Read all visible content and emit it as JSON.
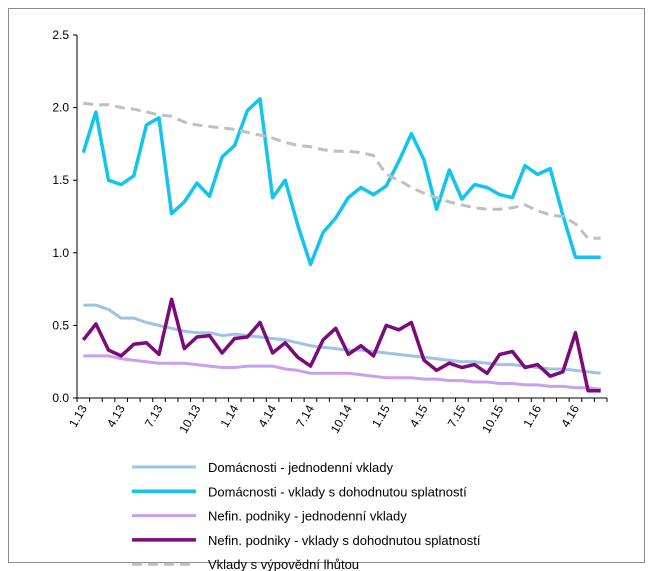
{
  "chart_data": {
    "type": "line",
    "title": "",
    "xlabel": "",
    "ylabel": "",
    "ylim": [
      0,
      2.5
    ],
    "yticks": [
      "0.0",
      "0.5",
      "1.0",
      "1.5",
      "2.0",
      "2.5"
    ],
    "grid": false,
    "legend_position": "bottom",
    "xtick_labels": [
      "1.13",
      "4.13",
      "7.13",
      "10.13",
      "1.14",
      "4.14",
      "7.14",
      "10.14",
      "1.15",
      "4.15",
      "7.15",
      "10.15",
      "1.16",
      "4.16"
    ],
    "n_points": 42,
    "series": [
      {
        "name": "Domácnosti - jednodenní vklady",
        "color": "#9dc3e6",
        "style": "solid",
        "values": [
          0.64,
          0.64,
          0.61,
          0.55,
          0.55,
          0.52,
          0.5,
          0.48,
          0.46,
          0.45,
          0.45,
          0.43,
          0.44,
          0.43,
          0.42,
          0.41,
          0.4,
          0.38,
          0.36,
          0.35,
          0.34,
          0.33,
          0.33,
          0.32,
          0.31,
          0.3,
          0.29,
          0.28,
          0.27,
          0.26,
          0.25,
          0.25,
          0.24,
          0.23,
          0.23,
          0.22,
          0.21,
          0.2,
          0.2,
          0.19,
          0.18,
          0.17
        ]
      },
      {
        "name": "Domácnosti - vklady s dohodnutou splatností",
        "color": "#12c4ee",
        "style": "solid",
        "values": [
          1.69,
          1.97,
          1.5,
          1.47,
          1.53,
          1.88,
          1.93,
          1.27,
          1.35,
          1.48,
          1.39,
          1.66,
          1.74,
          1.98,
          2.06,
          1.38,
          1.5,
          1.19,
          0.92,
          1.14,
          1.24,
          1.38,
          1.45,
          1.4,
          1.46,
          1.63,
          1.82,
          1.64,
          1.3,
          1.57,
          1.37,
          1.47,
          1.45,
          1.4,
          1.38,
          1.6,
          1.54,
          1.58,
          1.26,
          0.97,
          0.97,
          0.97
        ]
      },
      {
        "name": "Nefin. podniky - jednodenní vklady",
        "color": "#c9a0f0",
        "style": "solid",
        "values": [
          0.29,
          0.29,
          0.29,
          0.27,
          0.26,
          0.25,
          0.24,
          0.24,
          0.24,
          0.23,
          0.22,
          0.21,
          0.21,
          0.22,
          0.22,
          0.22,
          0.2,
          0.19,
          0.17,
          0.17,
          0.17,
          0.17,
          0.16,
          0.15,
          0.14,
          0.14,
          0.14,
          0.13,
          0.13,
          0.12,
          0.12,
          0.11,
          0.11,
          0.1,
          0.1,
          0.09,
          0.09,
          0.08,
          0.08,
          0.07,
          0.07,
          0.06
        ]
      },
      {
        "name": "Nefin. podniky - vklady s dohodnutou splatností",
        "color": "#7b0a7b",
        "style": "solid",
        "values": [
          0.4,
          0.51,
          0.33,
          0.29,
          0.37,
          0.38,
          0.3,
          0.68,
          0.34,
          0.42,
          0.43,
          0.31,
          0.41,
          0.42,
          0.52,
          0.31,
          0.38,
          0.28,
          0.22,
          0.4,
          0.48,
          0.3,
          0.36,
          0.29,
          0.5,
          0.47,
          0.52,
          0.26,
          0.19,
          0.24,
          0.21,
          0.23,
          0.17,
          0.3,
          0.32,
          0.21,
          0.23,
          0.15,
          0.18,
          0.45,
          0.05,
          0.05
        ]
      },
      {
        "name": "Vklady s výpovědní lhůtou",
        "color": "#bfbfbf",
        "style": "dashed",
        "values": [
          2.03,
          2.02,
          2.02,
          2.0,
          1.99,
          1.97,
          1.95,
          1.94,
          1.9,
          1.88,
          1.87,
          1.86,
          1.85,
          1.83,
          1.81,
          1.79,
          1.76,
          1.74,
          1.73,
          1.71,
          1.7,
          1.7,
          1.69,
          1.67,
          1.54,
          1.5,
          1.45,
          1.41,
          1.38,
          1.35,
          1.33,
          1.31,
          1.3,
          1.3,
          1.31,
          1.33,
          1.29,
          1.26,
          1.25,
          1.2,
          1.1,
          1.1
        ]
      }
    ]
  }
}
